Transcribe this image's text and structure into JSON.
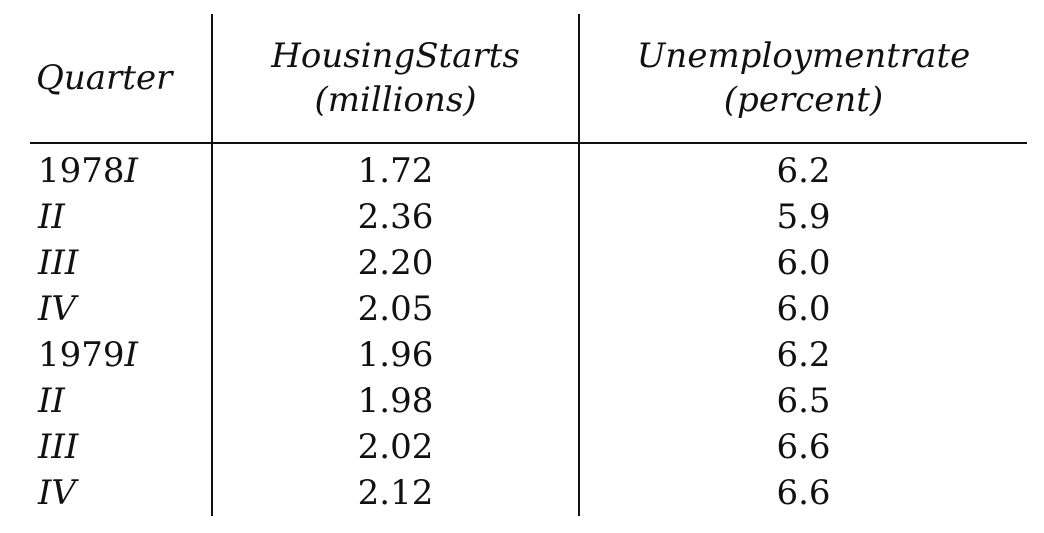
{
  "table": {
    "headers": {
      "quarter": "Quarter",
      "housing_line1": "HousingStarts",
      "housing_line2": "(millions)",
      "unemployment_line1": "Unemploymentrate",
      "unemployment_line2": "(percent)"
    },
    "rows": [
      {
        "year": "1978",
        "roman": "I",
        "housing": "1.72",
        "unemployment": "6.2"
      },
      {
        "year": "",
        "roman": "II",
        "housing": "2.36",
        "unemployment": "5.9"
      },
      {
        "year": "",
        "roman": "III",
        "housing": "2.20",
        "unemployment": "6.0"
      },
      {
        "year": "",
        "roman": "IV",
        "housing": "2.05",
        "unemployment": "6.0"
      },
      {
        "year": "1979",
        "roman": "I",
        "housing": "1.96",
        "unemployment": "6.2"
      },
      {
        "year": "",
        "roman": "II",
        "housing": "1.98",
        "unemployment": "6.5"
      },
      {
        "year": "",
        "roman": "III",
        "housing": "2.02",
        "unemployment": "6.6"
      },
      {
        "year": "",
        "roman": "IV",
        "housing": "2.12",
        "unemployment": "6.6"
      }
    ]
  }
}
